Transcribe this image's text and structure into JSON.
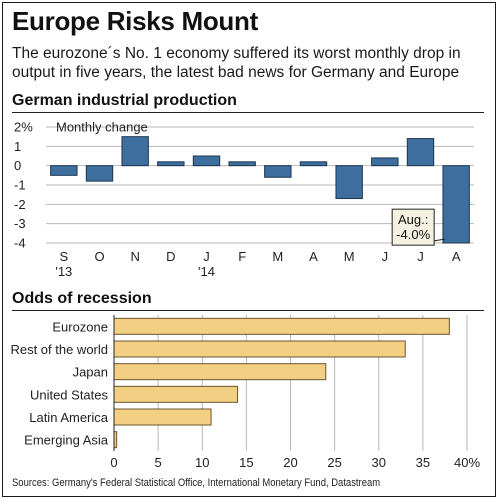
{
  "title": "Europe Risks Mount",
  "subtitle": "The eurozone´s No. 1 economy suffered its worst monthly drop in output in five years, the latest bad news for Germany and Europe",
  "source": "Sources: Germany's Federal Statistical Office, International Monetary Fund, Datastream",
  "colors": {
    "bar_blue": "#3d6e9e",
    "bar_tan": "#f3cf84",
    "grid": "#b8b8b8"
  },
  "chart_data": [
    {
      "type": "bar",
      "title": "German industrial production",
      "ylabel": "Monthly change",
      "y_unit": "%",
      "ylim": [
        -4,
        2
      ],
      "yticks": [
        2,
        1,
        0,
        -1,
        -2,
        -3,
        -4
      ],
      "ytick_labels": [
        "2%",
        "1",
        "0",
        "-1",
        "-2",
        "-3",
        "-4"
      ],
      "categories": [
        "S",
        "O",
        "N",
        "D",
        "J",
        "F",
        "M",
        "A",
        "M",
        "J",
        "J",
        "A"
      ],
      "year_labels": [
        {
          "index": 0,
          "text": "'13"
        },
        {
          "index": 4,
          "text": "'14"
        }
      ],
      "values": [
        -0.5,
        -0.8,
        1.5,
        0.2,
        0.5,
        0.2,
        -0.6,
        0.2,
        -1.7,
        0.4,
        1.4,
        -4.0
      ],
      "annotation": {
        "index": 11,
        "line1": "Aug.:",
        "line2": "-4.0%"
      },
      "grid": true
    },
    {
      "type": "bar",
      "orientation": "horizontal",
      "title": "Odds of recession",
      "categories": [
        "Eurozone",
        "Rest of the world",
        "Japan",
        "United States",
        "Latin America",
        "Emerging Asia"
      ],
      "values": [
        38,
        33,
        24,
        14,
        11,
        0.3
      ],
      "xlim": [
        0,
        40
      ],
      "xticks": [
        0,
        5,
        10,
        15,
        20,
        25,
        30,
        35,
        40
      ],
      "xtick_labels": [
        "0",
        "5",
        "10",
        "15",
        "20",
        "25",
        "30",
        "35",
        "40%"
      ],
      "grid": true
    }
  ]
}
